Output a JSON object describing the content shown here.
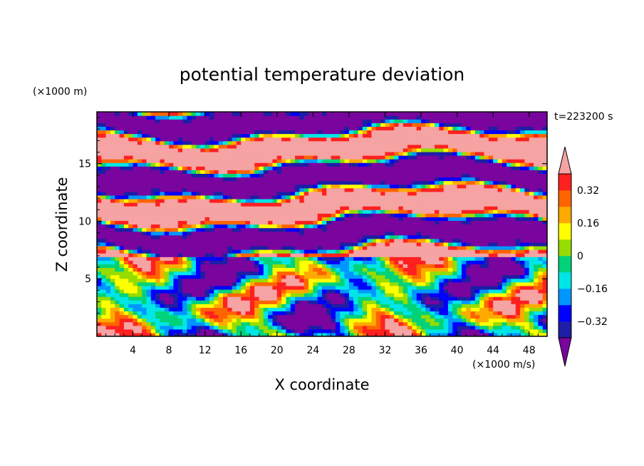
{
  "chart_data": {
    "type": "heatmap",
    "title": "potential temperature deviation",
    "xlabel": "X coordinate",
    "ylabel": "Z coordinate",
    "x_unit": "(×1000 m/s)",
    "y_unit": "(×1000 m)",
    "time_label": "t=223200 s",
    "xlim": [
      0,
      50
    ],
    "ylim": [
      0,
      19.5
    ],
    "x_ticks": [
      4,
      8,
      12,
      16,
      20,
      24,
      28,
      32,
      36,
      40,
      44,
      48
    ],
    "y_ticks": [
      5,
      10,
      15
    ],
    "colorbar": {
      "levels": [
        -0.4,
        -0.32,
        -0.24,
        -0.16,
        -0.08,
        0,
        0.08,
        0.16,
        0.24,
        0.32,
        0.4
      ],
      "labels": [
        {
          "value": 0.32,
          "text": "0.32"
        },
        {
          "value": 0.16,
          "text": "0.16"
        },
        {
          "value": 0,
          "text": "0"
        },
        {
          "value": -0.16,
          "text": "−0.16"
        },
        {
          "value": -0.32,
          "text": "−0.32"
        }
      ],
      "colors_low_to_high": [
        "#7a049e",
        "#1e1ea6",
        "#0000ff",
        "#0096ff",
        "#00e6e6",
        "#00d27a",
        "#96dc00",
        "#ffff00",
        "#ffaa00",
        "#ff6400",
        "#ff2020",
        "#f5a3a3"
      ],
      "under_color": "#7a049e",
      "over_color": "#f5a3a3"
    },
    "layers": [
      {
        "z_range": [
          17.5,
          19.5
        ],
        "dominant": "mixed purple / pink bands"
      },
      {
        "z_range": [
          7,
          17.5
        ],
        "dominant": "alternating purple and pink layers with red/yellow/cyan edges"
      },
      {
        "z_range": [
          0,
          7
        ],
        "dominant": "turbulent mix of blue, cyan, green, yellow, orange, red"
      }
    ]
  }
}
